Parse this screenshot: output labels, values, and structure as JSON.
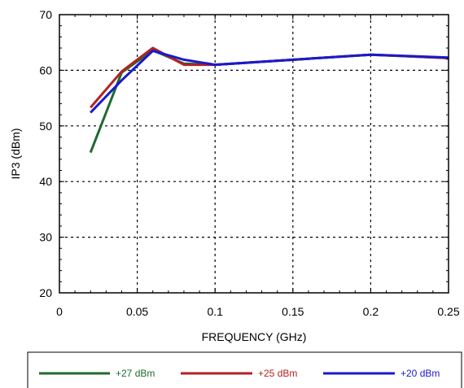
{
  "chart_data": {
    "type": "line",
    "title": "",
    "xlabel": "FREQUENCY (GHz)",
    "ylabel": "IP3 (dBm)",
    "xlim": [
      0,
      0.25
    ],
    "ylim": [
      20,
      70
    ],
    "x_ticks": [
      0,
      0.05,
      0.1,
      0.15,
      0.2,
      0.25
    ],
    "x_tick_labels": [
      "0",
      "0.05",
      "0.1",
      "0.15",
      "0.2",
      "0.25"
    ],
    "y_ticks": [
      20,
      30,
      40,
      50,
      60,
      70
    ],
    "y_tick_labels": [
      "20",
      "30",
      "40",
      "50",
      "60",
      "70"
    ],
    "grid": "dotted",
    "legend_position": "bottom",
    "series": [
      {
        "name": "+27 dBm",
        "color": "#1f6b2e",
        "x": [
          0.02,
          0.04,
          0.06,
          0.08,
          0.1,
          0.2,
          0.25
        ],
        "y": [
          45.2,
          59.6,
          63.6,
          61.2,
          61.0,
          62.8,
          62.2
        ]
      },
      {
        "name": "+25 dBm",
        "color": "#b22222",
        "x": [
          0.02,
          0.04,
          0.06,
          0.08,
          0.1,
          0.2,
          0.25
        ],
        "y": [
          53.3,
          59.8,
          64.0,
          61.0,
          61.0,
          62.8,
          62.2
        ]
      },
      {
        "name": "+20 dBm",
        "color": "#1a1acc",
        "x": [
          0.02,
          0.04,
          0.06,
          0.08,
          0.1,
          0.2,
          0.25
        ],
        "y": [
          52.4,
          58.2,
          63.5,
          61.9,
          61.0,
          62.8,
          62.3
        ]
      }
    ]
  }
}
